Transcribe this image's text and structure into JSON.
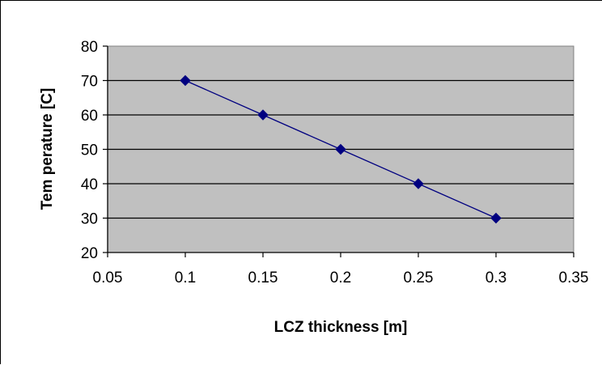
{
  "chart_data": {
    "type": "scatter",
    "title": "",
    "xlabel": "LCZ thickness [m]",
    "ylabel": "Tem perature  [C]",
    "x": [
      0.1,
      0.15,
      0.2,
      0.25,
      0.3
    ],
    "series": [
      {
        "values": [
          70,
          60,
          50,
          40,
          30
        ]
      }
    ],
    "xlim": [
      0.05,
      0.35
    ],
    "ylim": [
      20,
      80
    ],
    "x_ticks": [
      "0.05",
      "0.1",
      "0.15",
      "0.2",
      "0.25",
      "0.3",
      "0.35"
    ],
    "y_ticks": [
      "20",
      "30",
      "40",
      "50",
      "60",
      "70",
      "80"
    ],
    "grid": "horizontal major gridlines",
    "legend": "none",
    "marker": "diamond",
    "colors": {
      "series": "#000080",
      "plot_background": "#c0c0c0",
      "gridline": "#000000"
    }
  }
}
